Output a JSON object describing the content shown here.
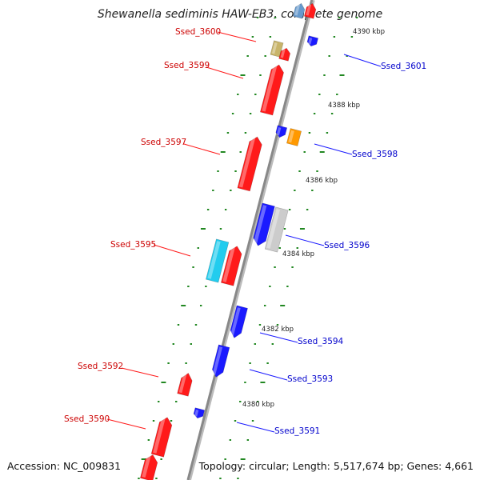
{
  "title": "Shewanella sediminis HAW-EB3, complete genome",
  "accession": "Accession: NC_009831",
  "topology": "Topology: circular; Length: 5,517,674 bp; Genes: 4,661",
  "colors": {
    "forward": "#ff1a1a",
    "reverse": "#1a1aff",
    "cyan": "#22ccee",
    "gray": "#cccccc",
    "orange": "#ff9900",
    "khaki": "#c8b46a",
    "lightblue": "#6699cc",
    "tick": "#228822",
    "backbone": "#888888"
  },
  "kbp_ticks": [
    {
      "label": "4390 kbp"
    },
    {
      "label": "4388 kbp"
    },
    {
      "label": "4386 kbp"
    },
    {
      "label": "4384 kbp"
    },
    {
      "label": "4382 kbp"
    },
    {
      "label": "4380 kbp"
    }
  ],
  "gene_labels": [
    {
      "label": "Ssed_3600",
      "strand": "forward"
    },
    {
      "label": "Ssed_3599",
      "strand": "forward"
    },
    {
      "label": "Ssed_3597",
      "strand": "forward"
    },
    {
      "label": "Ssed_3595",
      "strand": "forward"
    },
    {
      "label": "Ssed_3592",
      "strand": "forward"
    },
    {
      "label": "Ssed_3590",
      "strand": "forward"
    },
    {
      "label": "Ssed_3601",
      "strand": "reverse"
    },
    {
      "label": "Ssed_3598",
      "strand": "reverse"
    },
    {
      "label": "Ssed_3596",
      "strand": "reverse"
    },
    {
      "label": "Ssed_3594",
      "strand": "reverse"
    },
    {
      "label": "Ssed_3593",
      "strand": "reverse"
    },
    {
      "label": "Ssed_3591",
      "strand": "reverse"
    }
  ]
}
